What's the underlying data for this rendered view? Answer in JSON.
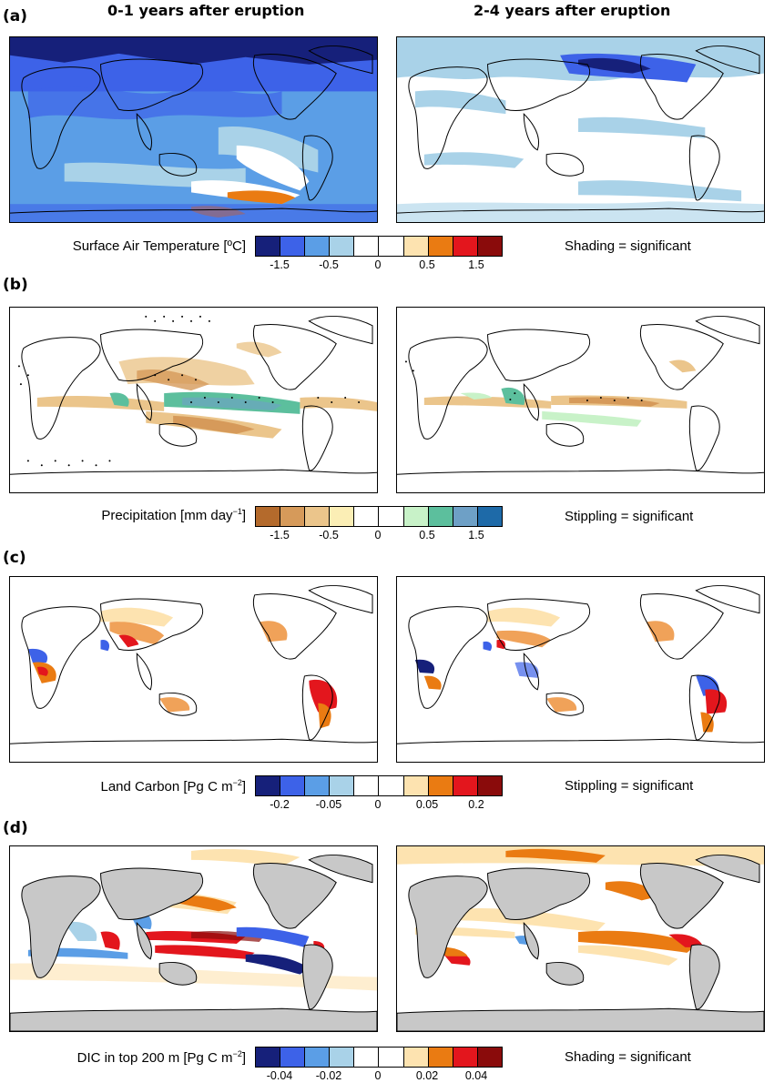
{
  "column_titles": [
    "0-1 years after eruption",
    "2-4 years after eruption"
  ],
  "panels": [
    {
      "label": "(a)",
      "colorbar_title": "Surface Air Temperature [ºC]",
      "note": "Shading = significant",
      "ticks": [
        "-1.5",
        "-0.5",
        "0",
        "0.5",
        "1.5"
      ],
      "colors": [
        "#16207a",
        "#3d62e8",
        "#5b9ee6",
        "#a9d2e8",
        "#ffffff",
        "#ffffff",
        "#fde3b0",
        "#ea7b12",
        "#e3161d",
        "#8a0b0b"
      ]
    },
    {
      "label": "(b)",
      "colorbar_title": "Precipitation [mm day",
      "colorbar_title_sup": "−1",
      "colorbar_title_end": "]",
      "note": "Stippling = significant",
      "ticks": [
        "-1.5",
        "-0.5",
        "0",
        "0.5",
        "1.5"
      ],
      "colors": [
        "#b46a2c",
        "#d69a5a",
        "#ebc58b",
        "#fbeeb5",
        "#ffffff",
        "#ffffff",
        "#c8f2c8",
        "#5cbf9d",
        "#6ea0c6",
        "#1e6aa8"
      ]
    },
    {
      "label": "(c)",
      "colorbar_title": "Land Carbon [Pg C m",
      "colorbar_title_sup": "−2",
      "colorbar_title_end": "]",
      "note": "Stippling = significant",
      "ticks": [
        "-0.2",
        "-0.05",
        "0",
        "0.05",
        "0.2"
      ],
      "colors": [
        "#16207a",
        "#3d62e8",
        "#5b9ee6",
        "#a9d2e8",
        "#ffffff",
        "#ffffff",
        "#fde3b0",
        "#ea7b12",
        "#e3161d",
        "#8a0b0b"
      ]
    },
    {
      "label": "(d)",
      "colorbar_title": "DIC in top 200 m [Pg C m",
      "colorbar_title_sup": "−2",
      "colorbar_title_end": "]",
      "note": "Shading = significant",
      "ticks": [
        "-0.04",
        "-0.02",
        "0",
        "0.02",
        "0.04"
      ],
      "colors": [
        "#16207a",
        "#3d62e8",
        "#5b9ee6",
        "#a9d2e8",
        "#ffffff",
        "#ffffff",
        "#fde3b0",
        "#ea7b12",
        "#e3161d",
        "#8a0b0b"
      ]
    }
  ]
}
